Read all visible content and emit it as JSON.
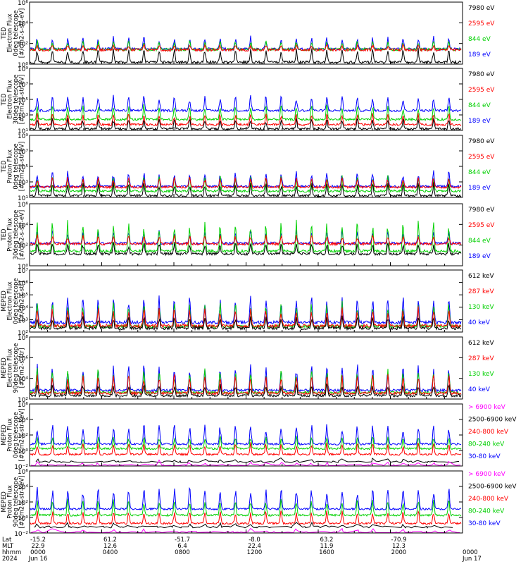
{
  "colors": {
    "black": "#000000",
    "red": "#ff0000",
    "green": "#00d000",
    "blue": "#0000ff",
    "magenta": "#ff00ff"
  },
  "chart_data": [
    {
      "type": "line",
      "ylabel": [
        "TED",
        "Electron Flux",
        "0deg telescope",
        "[#/cm2-s-str-eV]"
      ],
      "yticks": [
        "10⁶",
        "10⁴",
        "10²",
        "10⁰"
      ],
      "ylim": [
        1,
        1000000
      ],
      "log": true,
      "legend": [
        {
          "label": "7980 eV",
          "color": "black"
        },
        {
          "label": "2595 eV",
          "color": "red"
        },
        {
          "label": "844 eV",
          "color": "green"
        },
        {
          "label": "189 eV",
          "color": "blue"
        }
      ],
      "series_levels": {
        "blue": [
          20,
          500
        ],
        "green": [
          20,
          200
        ],
        "red": [
          20,
          80
        ],
        "black": [
          1,
          40
        ]
      }
    },
    {
      "type": "line",
      "ylabel": [
        "TED",
        "Electron Flux",
        "30deg telescope",
        "[#/cm2-s-str-eV]"
      ],
      "yticks": [
        "10⁹",
        "10⁷",
        "10⁵",
        "10³",
        "10¹"
      ],
      "ylim": [
        10,
        100000000
      ],
      "log": true,
      "legend": [
        {
          "label": "7980 eV",
          "color": "black"
        },
        {
          "label": "2595 eV",
          "color": "red"
        },
        {
          "label": "844 eV",
          "color": "green"
        },
        {
          "label": "189 eV",
          "color": "blue"
        }
      ],
      "series_levels": {
        "blue": [
          1000,
          100000
        ],
        "green": [
          100,
          10000
        ],
        "red": [
          30,
          1000
        ],
        "black": [
          10,
          300
        ]
      }
    },
    {
      "type": "line",
      "ylabel": [
        "TED",
        "Proton Flux",
        "0deg telescope",
        "[#/cm2-s-str-eV]"
      ],
      "yticks": [
        "10⁹",
        "10⁷",
        "10⁵",
        "10³",
        "10¹"
      ],
      "ylim": [
        10,
        100000000
      ],
      "log": true,
      "legend": [
        {
          "label": "7980 eV",
          "color": "black"
        },
        {
          "label": "2595 eV",
          "color": "red"
        },
        {
          "label": "844 eV",
          "color": "green"
        },
        {
          "label": "189 eV",
          "color": "blue"
        }
      ],
      "series_levels": {
        "blue": [
          100,
          10000
        ],
        "green": [
          30,
          3000
        ],
        "red": [
          100,
          2000
        ],
        "black": [
          10,
          500
        ]
      }
    },
    {
      "type": "line",
      "ylabel": [
        "TED",
        "Proton Flux",
        "30deg telescope",
        "[#/cm2-s-str-eV]"
      ],
      "yticks": [
        "10⁶",
        "10⁴",
        "10²",
        "10⁰"
      ],
      "ylim": [
        1,
        1000000
      ],
      "log": true,
      "legend": [
        {
          "label": "7980 eV",
          "color": "black"
        },
        {
          "label": "2595 eV",
          "color": "red"
        },
        {
          "label": "844 eV",
          "color": "green"
        },
        {
          "label": "189 eV",
          "color": "blue"
        }
      ],
      "series_levels": {
        "blue": [
          100,
          3000
        ],
        "green": [
          10,
          30000
        ],
        "red": [
          100,
          1000
        ],
        "black": [
          10,
          200
        ]
      }
    },
    {
      "type": "line",
      "ylabel": [
        "MEPED",
        "Electron Flux",
        "0deg telescope",
        "[#/cm2-s-str]"
      ],
      "yticks": [
        "10⁷",
        "10⁶",
        "10⁵",
        "10⁴",
        "10³",
        "10²"
      ],
      "ylim": [
        100,
        10000000
      ],
      "log": true,
      "legend": [
        {
          "label": "612 keV",
          "color": "black"
        },
        {
          "label": "287 keV",
          "color": "red"
        },
        {
          "label": "130 keV",
          "color": "green"
        },
        {
          "label": "40 keV",
          "color": "blue"
        }
      ],
      "series_levels": {
        "blue": [
          300,
          100000
        ],
        "green": [
          150,
          30000
        ],
        "red": [
          200,
          10000
        ],
        "black": [
          150,
          2000
        ]
      }
    },
    {
      "type": "line",
      "ylabel": [
        "MEPED",
        "Electron Flux",
        "90deg telescope",
        "[#/cm2-s-str]"
      ],
      "yticks": [
        "10⁸",
        "10⁶",
        "10⁴",
        "10²"
      ],
      "ylim": [
        100,
        100000000
      ],
      "log": true,
      "legend": [
        {
          "label": "612 keV",
          "color": "black"
        },
        {
          "label": "287 keV",
          "color": "red"
        },
        {
          "label": "130 keV",
          "color": "green"
        },
        {
          "label": "40 keV",
          "color": "blue"
        }
      ],
      "series_levels": {
        "blue": [
          300,
          300000
        ],
        "green": [
          200,
          100000
        ],
        "red": [
          200,
          30000
        ],
        "black": [
          150,
          3000
        ]
      }
    },
    {
      "type": "line",
      "ylabel": [
        "MEPED",
        "Proton Flux",
        "0deg telescope",
        "[#/cm2-s-str-keV]"
      ],
      "yticks": [
        "10⁶",
        "10⁴",
        "10²",
        "10⁰",
        "10⁻²"
      ],
      "ylim": [
        0.01,
        1000000
      ],
      "log": true,
      "legend": [
        {
          "label": "> 6900 keV",
          "color": "magenta"
        },
        {
          "label": "2500-6900 keV",
          "color": "black"
        },
        {
          "label": "240-800 keV",
          "color": "red"
        },
        {
          "label": "80-240 keV",
          "color": "green"
        },
        {
          "label": "30-80 keV",
          "color": "blue"
        }
      ],
      "series_levels": {
        "blue": [
          3,
          3000
        ],
        "green": [
          1,
          100
        ],
        "red": [
          0.2,
          10
        ],
        "black": [
          0.03,
          0.1
        ],
        "magenta": [
          0.01,
          0.05
        ]
      }
    },
    {
      "type": "line",
      "ylabel": [
        "MEPED",
        "Proton Flux",
        "90deg telescope",
        "[#/cm2-s-str-keV]"
      ],
      "yticks": [
        "10⁶",
        "10⁴",
        "10²",
        "10⁰",
        "10⁻²"
      ],
      "ylim": [
        0.01,
        1000000
      ],
      "log": true,
      "legend": [
        {
          "label": "> 6900 keV",
          "color": "magenta"
        },
        {
          "label": "2500-6900 keV",
          "color": "black"
        },
        {
          "label": "240-800 keV",
          "color": "red"
        },
        {
          "label": "80-240 keV",
          "color": "green"
        },
        {
          "label": "30-80 keV",
          "color": "blue"
        }
      ],
      "series_levels": {
        "blue": [
          5,
          10000
        ],
        "green": [
          1,
          300
        ],
        "red": [
          0.1,
          10
        ],
        "black": [
          0.05,
          0.2
        ],
        "magenta": [
          0.01,
          0.05
        ]
      }
    }
  ],
  "xaxis": {
    "row_labels": [
      "Lat",
      "MLT",
      "hhmm",
      "2024"
    ],
    "columns": [
      [
        "-15.2",
        "22.9",
        "0000",
        "Jun 16"
      ],
      [
        "61.2",
        "12.6",
        "0400",
        ""
      ],
      [
        "-51.7",
        "6.4",
        "0800",
        ""
      ],
      [
        "-8.0",
        "22.4",
        "1200",
        ""
      ],
      [
        "63.2",
        "11.9",
        "1600",
        ""
      ],
      [
        "-70.9",
        "12.3",
        "2000",
        ""
      ],
      [
        "",
        "",
        "0000",
        "Jun 17"
      ]
    ]
  }
}
